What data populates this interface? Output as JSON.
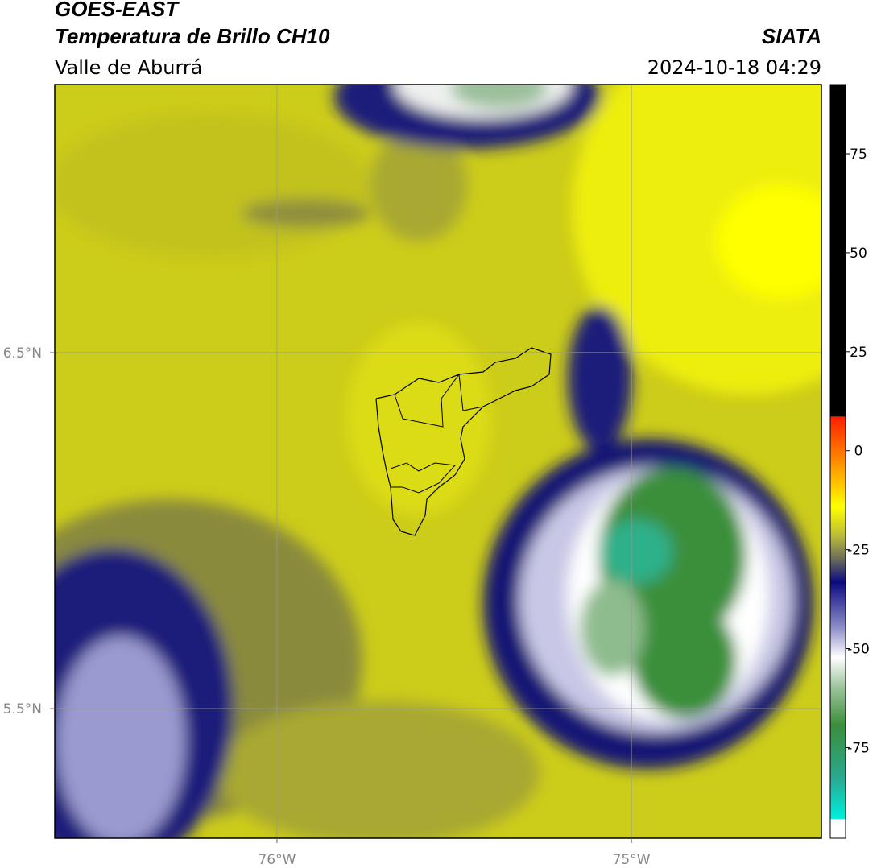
{
  "header": {
    "title": "GOES-EAST",
    "subtitle": "Temperatura de Brillo CH10",
    "region": "Valle de Aburrá",
    "source": "SIATA",
    "datetime": "2024-10-18 04:29"
  },
  "map": {
    "xlim": [
      -76.627,
      -74.464
    ],
    "ylim": [
      5.136,
      7.253
    ],
    "xticks": [
      {
        "value": -76,
        "label": "76°W"
      },
      {
        "value": -75,
        "label": "75°W"
      }
    ],
    "yticks": [
      {
        "value": 6.5,
        "label": "6.5°N"
      },
      {
        "value": 5.5,
        "label": "5.5°N"
      }
    ]
  },
  "colorbar": {
    "lim": [
      -97.9,
      92.5
    ],
    "ticks": [
      75,
      50,
      25,
      0,
      -25,
      -50,
      -75
    ]
  }
}
